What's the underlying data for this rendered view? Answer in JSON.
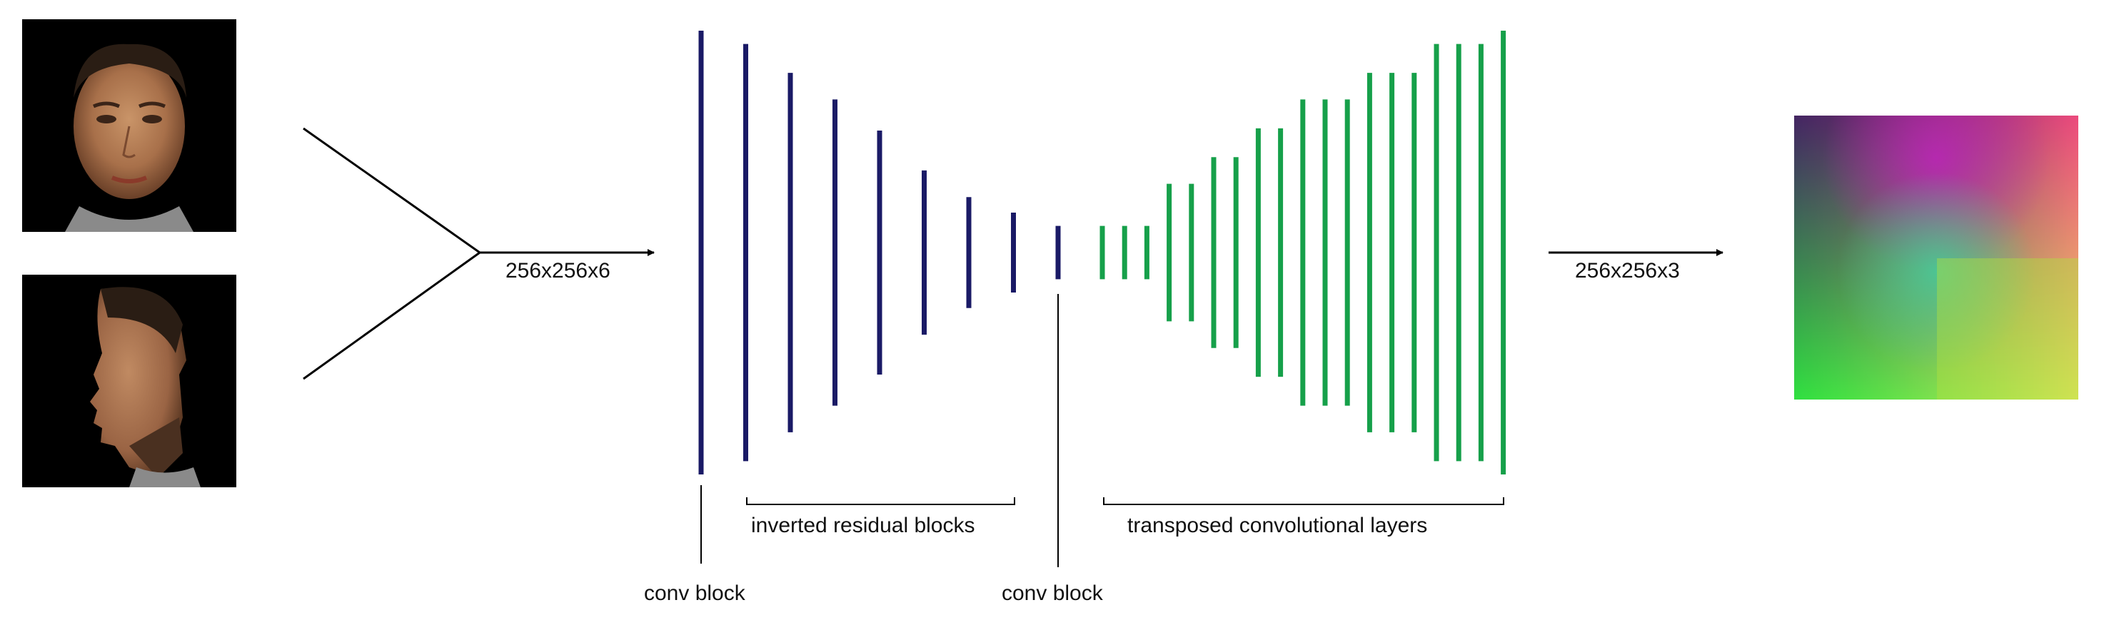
{
  "inputs": [
    {
      "view": "frontal face photo"
    },
    {
      "view": "profile face photo"
    }
  ],
  "labels": {
    "input_tensor": "256x256x6",
    "output_tensor": "256x256x3",
    "inverted_residual": "inverted residual blocks",
    "transposed_conv": "transposed convolutional layers",
    "conv_block_1": "conv block",
    "conv_block_2": "conv block"
  },
  "colors": {
    "encoder": "#1a1a66",
    "decoder": "#16a04a",
    "lines": "#000000",
    "background": "#ffffff"
  },
  "layers": {
    "encoder_relative_heights": [
      1.0,
      0.94,
      0.81,
      0.69,
      0.55,
      0.37,
      0.25,
      0.18,
      0.12
    ],
    "decoder_relative_heights": [
      0.12,
      0.12,
      0.12,
      0.31,
      0.31,
      0.43,
      0.43,
      0.56,
      0.56,
      0.69,
      0.69,
      0.69,
      0.81,
      0.81,
      0.81,
      0.94,
      0.94,
      0.94,
      1.0
    ]
  }
}
